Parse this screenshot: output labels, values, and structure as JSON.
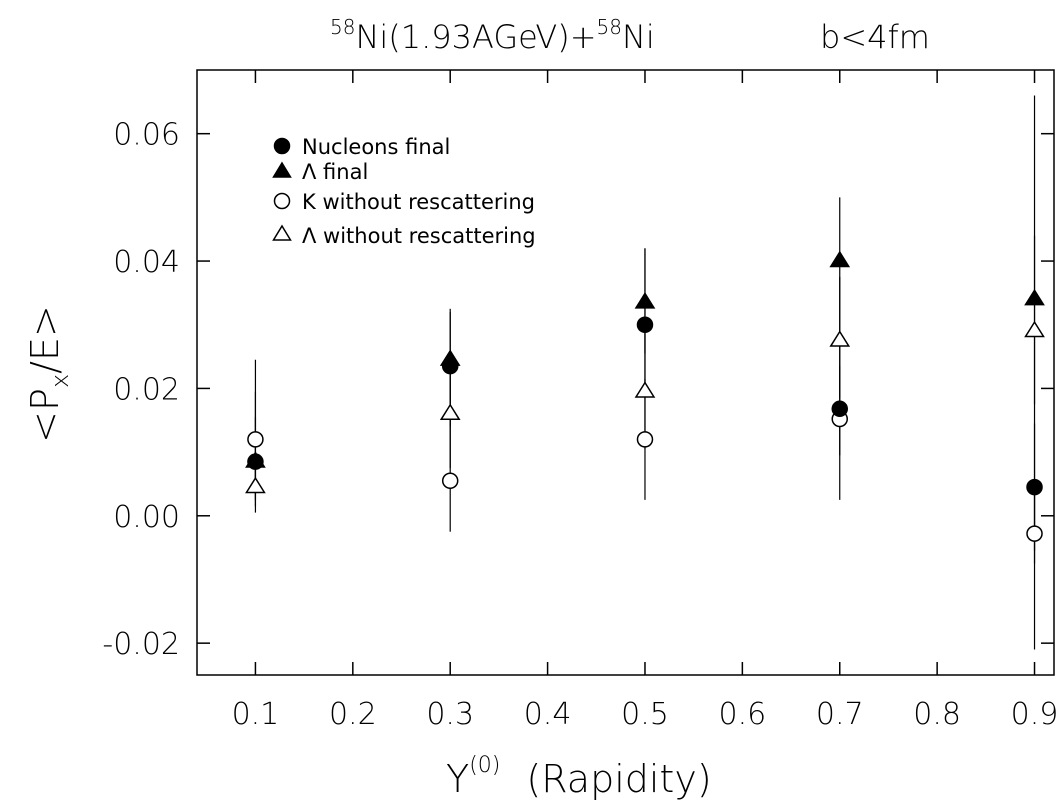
{
  "chart_data": {
    "type": "scatter",
    "title": {
      "pre_sup": "58",
      "main": "Ni(1.93AGeV)+",
      "mid_sup": "58",
      "post": "Ni",
      "cut": "b<4fm"
    },
    "xlabel": {
      "symbol": "Y",
      "sup": "(0)",
      "text": "(Rapidity)"
    },
    "ylabel": {
      "open": "<P",
      "sub": "x",
      "close": "/E>"
    },
    "xlim": [
      0.04,
      0.92
    ],
    "ylim": [
      -0.025,
      0.07
    ],
    "xticks": [
      "0.1",
      "0.2",
      "0.3",
      "0.4",
      "0.5",
      "0.6",
      "0.7",
      "0.8",
      "0.9"
    ],
    "yticks": [
      "-0.02",
      "0.00",
      "0.02",
      "0.04",
      "0.06"
    ],
    "grid": false,
    "legend_position": "top-left",
    "series": [
      {
        "name": "Nucleons final",
        "marker": "circle",
        "filled": true,
        "points": [
          {
            "x": 0.1,
            "y": 0.0085,
            "err_low": 0.0015,
            "err_high": 0.0245
          },
          {
            "x": 0.3,
            "y": 0.0235,
            "err_low": 0.0135,
            "err_high": 0.0325
          },
          {
            "x": 0.5,
            "y": 0.03,
            "err_low": 0.0185,
            "err_high": 0.042
          },
          {
            "x": 0.7,
            "y": 0.0168,
            "err_low": 0.0095,
            "err_high": 0.0235
          },
          {
            "x": 0.9,
            "y": 0.0045,
            "err_low": -0.0055,
            "err_high": 0.0145
          }
        ]
      },
      {
        "name": "Λ final",
        "marker": "triangle",
        "filled": true,
        "points": [
          {
            "x": 0.1,
            "y": 0.0085,
            "err_low": 0.0035,
            "err_high": 0.0155
          },
          {
            "x": 0.3,
            "y": 0.0245,
            "err_low": 0.014,
            "err_high": 0.032
          },
          {
            "x": 0.5,
            "y": 0.0335,
            "err_low": 0.0255,
            "err_high": 0.042
          },
          {
            "x": 0.7,
            "y": 0.04,
            "err_low": 0.029,
            "err_high": 0.05
          },
          {
            "x": 0.9,
            "y": 0.034,
            "err_low": 0.0175,
            "err_high": 0.044
          }
        ]
      },
      {
        "name": "K without rescattering",
        "marker": "circle",
        "filled": false,
        "points": [
          {
            "x": 0.1,
            "y": 0.012,
            "err_low": 0.0025,
            "err_high": 0.0195
          },
          {
            "x": 0.3,
            "y": 0.0055,
            "err_low": -0.0025,
            "err_high": 0.0135
          },
          {
            "x": 0.5,
            "y": 0.012,
            "err_low": 0.0025,
            "err_high": 0.0215
          },
          {
            "x": 0.7,
            "y": 0.0152,
            "err_low": 0.0025,
            "err_high": 0.0275
          },
          {
            "x": 0.9,
            "y": -0.0028,
            "err_low": -0.0075,
            "err_high": 0.0035
          }
        ]
      },
      {
        "name": "Λ without rescattering",
        "marker": "triangle",
        "filled": false,
        "points": [
          {
            "x": 0.1,
            "y": 0.0045,
            "err_low": 0.0005,
            "err_high": 0.0095
          },
          {
            "x": 0.3,
            "y": 0.016,
            "err_low": 0.0075,
            "err_high": 0.024
          },
          {
            "x": 0.5,
            "y": 0.0195,
            "err_low": 0.0105,
            "err_high": 0.0295
          },
          {
            "x": 0.7,
            "y": 0.0275,
            "err_low": 0.0185,
            "err_high": 0.0375
          },
          {
            "x": 0.9,
            "y": 0.029,
            "err_low": -0.021,
            "err_high": 0.066
          }
        ]
      }
    ]
  }
}
